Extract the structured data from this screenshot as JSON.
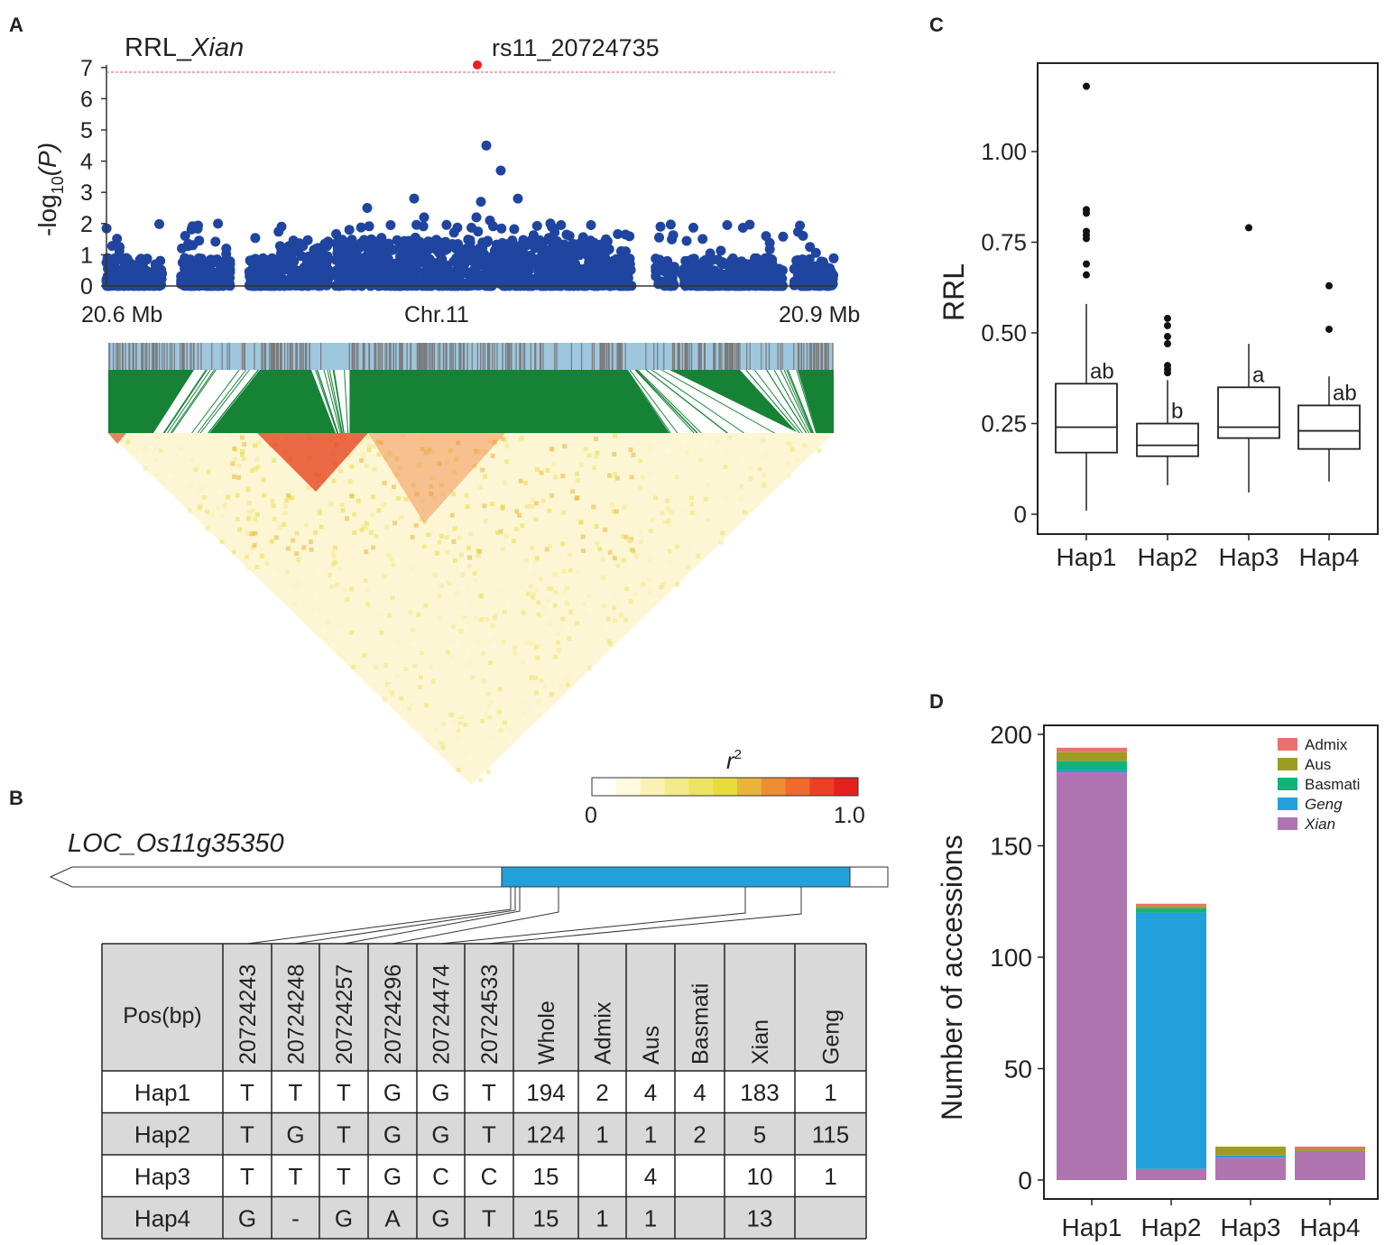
{
  "panels": {
    "a": "A",
    "b": "B",
    "c": "C",
    "d": "D"
  },
  "panel_a": {
    "title_prefix": "RRL_",
    "title_italic": "Xian",
    "lead_snp": "rs11_20724735",
    "ylabel_base": "-log",
    "ylabel_sub": "10",
    "ylabel_end": "(P)",
    "x_left": "20.6 Mb",
    "x_mid": "Chr.11",
    "x_right": "20.9 Mb",
    "yticks": [
      "0",
      "1",
      "2",
      "3",
      "4",
      "5",
      "6",
      "7"
    ],
    "threshold": 6.85,
    "colors": {
      "points": "#1f45a0",
      "lead": "#e8201e",
      "threshold": "#e05050",
      "track": "#9ec6dd",
      "ld_lines": "#158236"
    }
  },
  "ld_legend": {
    "label": "r",
    "label_sup": "2",
    "min": "0",
    "max": "1.0",
    "colors": [
      "#ffffff",
      "#fdfae0",
      "#f9f1b4",
      "#f3ea8c",
      "#ede364",
      "#e8dc3c",
      "#eab43a",
      "#ed8c33",
      "#ef6a2c",
      "#ec4025",
      "#e3221d"
    ]
  },
  "panel_b": {
    "gene": "LOC_Os11g35350",
    "header": [
      "Pos(bp)",
      "20724243",
      "20724248",
      "20724257",
      "20724296",
      "20724474",
      "20724533",
      "Whole",
      "Admix",
      "Aus",
      "Basmati",
      "Xian",
      "Geng"
    ],
    "rows": [
      [
        "Hap1",
        "T",
        "T",
        "T",
        "G",
        "G",
        "T",
        "194",
        "2",
        "4",
        "4",
        "183",
        "1"
      ],
      [
        "Hap2",
        "T",
        "G",
        "T",
        "G",
        "G",
        "T",
        "124",
        "1",
        "1",
        "2",
        "5",
        "115"
      ],
      [
        "Hap3",
        "T",
        "T",
        "T",
        "G",
        "C",
        "C",
        "15",
        "",
        "4",
        "",
        "10",
        "1"
      ],
      [
        "Hap4",
        "G",
        "-",
        "G",
        "A",
        "G",
        "T",
        "15",
        "1",
        "1",
        "",
        "13",
        ""
      ]
    ]
  },
  "chart_data": [
    {
      "type": "box",
      "title": "",
      "xlabel": "",
      "ylabel": "RRL",
      "categories": [
        "Hap1",
        "Hap2",
        "Hap3",
        "Hap4"
      ],
      "yticks": [
        "0",
        "0.25",
        "0.50",
        "0.75",
        "1.00"
      ],
      "ylim": [
        -0.03,
        1.24
      ],
      "boxes": [
        {
          "name": "Hap1",
          "min": 0.01,
          "q1": 0.17,
          "median": 0.24,
          "q3": 0.36,
          "max": 0.58,
          "letter": "ab",
          "outliers": [
            1.18,
            0.84,
            0.83,
            0.78,
            0.77,
            0.76,
            0.69,
            0.66
          ]
        },
        {
          "name": "Hap2",
          "min": 0.08,
          "q1": 0.16,
          "median": 0.19,
          "q3": 0.25,
          "max": 0.37,
          "letter": "b",
          "outliers": [
            0.54,
            0.52,
            0.49,
            0.47,
            0.41,
            0.4,
            0.39
          ]
        },
        {
          "name": "Hap3",
          "min": 0.06,
          "q1": 0.21,
          "median": 0.24,
          "q3": 0.35,
          "max": 0.47,
          "letter": "a",
          "outliers": [
            0.79
          ]
        },
        {
          "name": "Hap4",
          "min": 0.09,
          "q1": 0.18,
          "median": 0.23,
          "q3": 0.3,
          "max": 0.38,
          "letter": "ab",
          "outliers": [
            0.63,
            0.51
          ]
        }
      ]
    },
    {
      "type": "bar",
      "stacked": true,
      "xlabel": "",
      "ylabel": "Number of accessions",
      "categories": [
        "Hap1",
        "Hap2",
        "Hap3",
        "Hap4"
      ],
      "yticks": [
        "0",
        "50",
        "100",
        "150",
        "200"
      ],
      "ylim": [
        -3,
        205
      ],
      "legend_position": "top-right",
      "series": [
        {
          "name": "Xian",
          "color": "#b075b1",
          "values": [
            183,
            5,
            10,
            13
          ]
        },
        {
          "name": "Geng",
          "color": "#21a0dc",
          "values": [
            1,
            115,
            1,
            0
          ]
        },
        {
          "name": "Basmati",
          "color": "#14b27b",
          "values": [
            4,
            2,
            0,
            0
          ]
        },
        {
          "name": "Aus",
          "color": "#9c9c25",
          "values": [
            4,
            1,
            4,
            1
          ]
        },
        {
          "name": "Admix",
          "color": "#e8716e",
          "values": [
            2,
            1,
            0,
            1
          ]
        }
      ],
      "legend": [
        "Admix",
        "Aus",
        "Basmati",
        "Geng",
        "Xian"
      ]
    }
  ]
}
